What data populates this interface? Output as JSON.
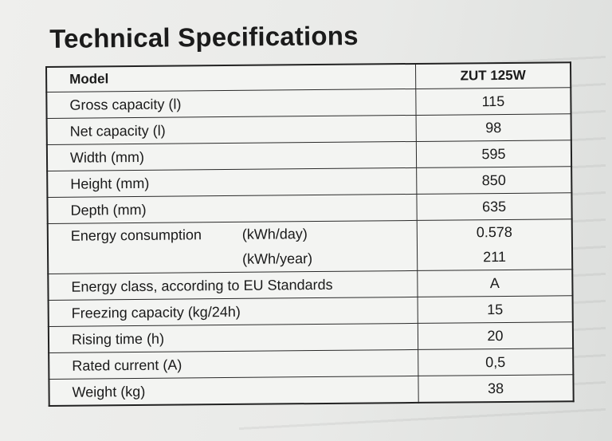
{
  "title": "Technical Specifications",
  "header": {
    "label": "Model",
    "value": "ZUT 125W"
  },
  "rows": [
    {
      "label": "Gross capacity (l)",
      "value": "115"
    },
    {
      "label": "Net capacity (l)",
      "value": "98"
    },
    {
      "label": "Width (mm)",
      "value": "595"
    },
    {
      "label": "Height (mm)",
      "value": "850"
    },
    {
      "label": "Depth (mm)",
      "value": "635"
    }
  ],
  "energy": {
    "label": "Energy consumption",
    "unit_day": "(kWh/day)",
    "unit_year": "(kWh/year)",
    "value_day": "0.578",
    "value_year": "211"
  },
  "rows_after": [
    {
      "label": "Energy class, according to EU Standards",
      "value": "A"
    },
    {
      "label": "Freezing capacity (kg/24h)",
      "value": "15"
    },
    {
      "label": "Rising time (h)",
      "value": "20"
    },
    {
      "label": "Rated current (A)",
      "value": "0,5"
    },
    {
      "label": "Weight (kg)",
      "value": "38"
    }
  ]
}
